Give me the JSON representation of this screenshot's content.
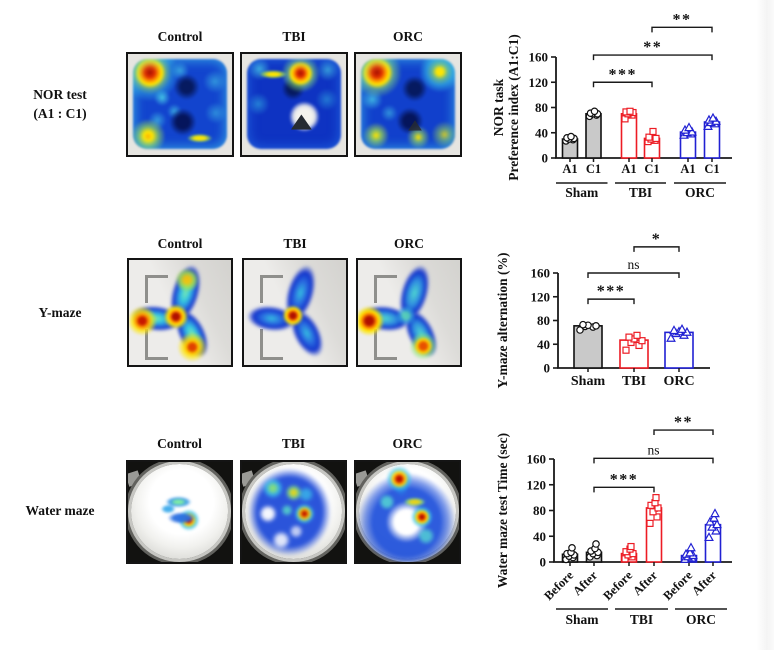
{
  "figure": {
    "rows": [
      {
        "label": "NOR test\n(A1 : C1)",
        "panels": [
          {
            "header": "Control"
          },
          {
            "header": "TBI"
          },
          {
            "header": "ORC"
          }
        ]
      },
      {
        "label": "Y-maze",
        "panels": [
          {
            "header": "Control"
          },
          {
            "header": "TBI"
          },
          {
            "header": "ORC"
          }
        ]
      },
      {
        "label": "Water maze",
        "panels": [
          {
            "header": "Control"
          },
          {
            "header": "TBI"
          },
          {
            "header": "ORC"
          }
        ]
      }
    ]
  },
  "colors": {
    "sham_fill": "#c9c9c9",
    "sham_stroke": "#111111",
    "tbi_red": "#ed1c24",
    "orc_blue": "#2121d3",
    "axis": "#1a1a1a"
  },
  "chart_data": [
    {
      "type": "bar",
      "ylabel": "NOR task\nPreference index (A1:C1)",
      "ylim": [
        0,
        160
      ],
      "yticks": [
        0,
        40,
        80,
        120,
        160
      ],
      "groups": [
        {
          "name": "Sham",
          "color": "#111111",
          "fill": "#c9c9c9",
          "marker": "circle",
          "bars": [
            {
              "label": "A1",
              "mean": 30,
              "sem": 2,
              "points": [
                27,
                29,
                30,
                31,
                32,
                34
              ]
            },
            {
              "label": "C1",
              "mean": 70,
              "sem": 2,
              "points": [
                66,
                68,
                70,
                70,
                71,
                74
              ]
            }
          ]
        },
        {
          "name": "TBI",
          "color": "#ed1c24",
          "fill": "#ffffff",
          "marker": "square",
          "bars": [
            {
              "label": "A1",
              "mean": 70,
              "sem": 2,
              "points": [
                62,
                68,
                70,
                72,
                73,
                74
              ]
            },
            {
              "label": "C1",
              "mean": 31,
              "sem": 3,
              "points": [
                26,
                28,
                30,
                31,
                33,
                42
              ]
            }
          ]
        },
        {
          "name": "ORC",
          "color": "#2121d3",
          "fill": "#ffffff",
          "marker": "triangle",
          "bars": [
            {
              "label": "A1",
              "mean": 41,
              "sem": 3,
              "points": [
                36,
                38,
                40,
                41,
                44,
                48
              ]
            },
            {
              "label": "C1",
              "mean": 57,
              "sem": 3,
              "points": [
                50,
                54,
                56,
                58,
                60,
                63
              ]
            }
          ]
        }
      ],
      "brackets": [
        {
          "from": [
            0,
            1
          ],
          "to": [
            1,
            1
          ],
          "label": "***",
          "y": 120
        },
        {
          "from": [
            0,
            1
          ],
          "to": [
            2,
            1
          ],
          "label": "**",
          "y": 163
        },
        {
          "from": [
            1,
            1
          ],
          "to": [
            2,
            1
          ],
          "label": "**",
          "y": 207
        }
      ]
    },
    {
      "type": "bar",
      "ylabel": "Y-maze alternation (%)",
      "ylim": [
        0,
        160
      ],
      "yticks": [
        0,
        40,
        80,
        120,
        160
      ],
      "groups": [
        {
          "name": "Sham",
          "color": "#111111",
          "fill": "#c9c9c9",
          "marker": "circle",
          "bars": [
            {
              "label": "Sham",
              "mean": 71,
              "sem": 2,
              "points": [
                64,
                69,
                70,
                71,
                72,
                73
              ]
            }
          ]
        },
        {
          "name": "TBI",
          "color": "#ed1c24",
          "fill": "#ffffff",
          "marker": "square",
          "bars": [
            {
              "label": "TBI",
              "mean": 47,
              "sem": 4,
              "points": [
                30,
                38,
                43,
                46,
                49,
                52,
                55
              ]
            }
          ]
        },
        {
          "name": "ORC",
          "color": "#2121d3",
          "fill": "#ffffff",
          "marker": "triangle",
          "bars": [
            {
              "label": "ORC",
              "mean": 60,
              "sem": 3,
              "points": [
                50,
                55,
                58,
                60,
                61,
                63,
                65
              ]
            }
          ]
        }
      ],
      "brackets": [
        {
          "from": [
            0,
            0
          ],
          "to": [
            1,
            0
          ],
          "label": "***",
          "y": 116
        },
        {
          "from": [
            0,
            0
          ],
          "to": [
            2,
            0
          ],
          "label": "ns",
          "y": 160
        },
        {
          "from": [
            1,
            0
          ],
          "to": [
            2,
            0
          ],
          "label": "*",
          "y": 204
        }
      ]
    },
    {
      "type": "bar",
      "ylabel": "Water maze test Time (sec)",
      "ylim": [
        0,
        160
      ],
      "yticks": [
        0,
        40,
        80,
        120,
        160
      ],
      "groups": [
        {
          "name": "Sham",
          "color": "#111111",
          "fill": "#c9c9c9",
          "marker": "circle",
          "bars": [
            {
              "label": "Before",
              "mean": 12,
              "sem": 3,
              "points": [
                4,
                7,
                9,
                11,
                13,
                15,
                22
              ]
            },
            {
              "label": "After",
              "mean": 15,
              "sem": 3,
              "points": [
                8,
                10,
                13,
                15,
                17,
                21,
                28
              ]
            }
          ]
        },
        {
          "name": "TBI",
          "color": "#ed1c24",
          "fill": "#ffffff",
          "marker": "square",
          "bars": [
            {
              "label": "Before",
              "mean": 13,
              "sem": 3,
              "points": [
                5,
                8,
                11,
                13,
                16,
                20,
                24
              ]
            },
            {
              "label": "After",
              "mean": 84,
              "sem": 5,
              "points": [
                60,
                70,
                78,
                84,
                88,
                92,
                100
              ]
            }
          ]
        },
        {
          "name": "ORC",
          "color": "#2121d3",
          "fill": "#ffffff",
          "marker": "triangle",
          "bars": [
            {
              "label": "Before",
              "mean": 10,
              "sem": 2,
              "points": [
                4,
                6,
                8,
                10,
                12,
                14,
                22
              ]
            },
            {
              "label": "After",
              "mean": 58,
              "sem": 5,
              "points": [
                38,
                48,
                54,
                58,
                62,
                68,
                75
              ]
            }
          ]
        }
      ],
      "brackets": [
        {
          "from": [
            0,
            1
          ],
          "to": [
            1,
            1
          ],
          "label": "***",
          "y": 116
        },
        {
          "from": [
            0,
            1
          ],
          "to": [
            2,
            1
          ],
          "label": "ns",
          "y": 161
        },
        {
          "from": [
            1,
            1
          ],
          "to": [
            2,
            1
          ],
          "label": "**",
          "y": 205
        }
      ]
    }
  ]
}
